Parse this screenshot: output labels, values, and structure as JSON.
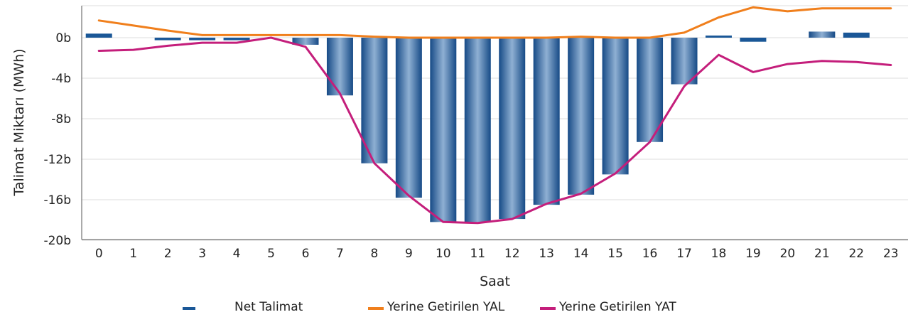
{
  "chart_data": {
    "type": "bar",
    "xlabel": "Saat",
    "ylabel": "Talimat Miktarı (MWh)",
    "categories": [
      "0",
      "1",
      "2",
      "3",
      "4",
      "5",
      "6",
      "7",
      "8",
      "9",
      "10",
      "11",
      "12",
      "13",
      "14",
      "15",
      "16",
      "17",
      "18",
      "19",
      "20",
      "21",
      "22",
      "23"
    ],
    "y_ticks": [
      {
        "value": 0,
        "label": "0b"
      },
      {
        "value": -4000,
        "label": "-4b"
      },
      {
        "value": -8000,
        "label": "-8b"
      },
      {
        "value": -12000,
        "label": "-12b"
      },
      {
        "value": -16000,
        "label": "-16b"
      },
      {
        "value": -20000,
        "label": "-20b"
      }
    ],
    "ylim": [
      -20000,
      3000
    ],
    "grid": true,
    "legend_position": "bottom-center",
    "series": [
      {
        "name": "Net Talimat",
        "type": "bar",
        "color": "#1a5797",
        "values": [
          400,
          0,
          -250,
          -250,
          -250,
          0,
          -700,
          -5700,
          -12400,
          -15800,
          -18200,
          -18200,
          -17900,
          -16500,
          -15500,
          -13500,
          -10300,
          -4600,
          200,
          -400,
          0,
          600,
          500,
          0
        ]
      },
      {
        "name": "Yerine Getirilen YAL",
        "type": "line",
        "color": "#f07f1c",
        "values": [
          1700,
          1200,
          700,
          250,
          250,
          250,
          250,
          250,
          100,
          0,
          0,
          0,
          0,
          0,
          100,
          0,
          0,
          500,
          2000,
          3000,
          2600,
          2900,
          2900,
          2900
        ]
      },
      {
        "name": "Yerine Getirilen YAT",
        "type": "line",
        "color": "#c41e7b",
        "values": [
          -1300,
          -1200,
          -800,
          -500,
          -500,
          0,
          -900,
          -5500,
          -12400,
          -15600,
          -18200,
          -18300,
          -17900,
          -16400,
          -15400,
          -13400,
          -10300,
          -4800,
          -1700,
          -3400,
          -2600,
          -2300,
          -2400,
          -2700
        ]
      }
    ]
  }
}
